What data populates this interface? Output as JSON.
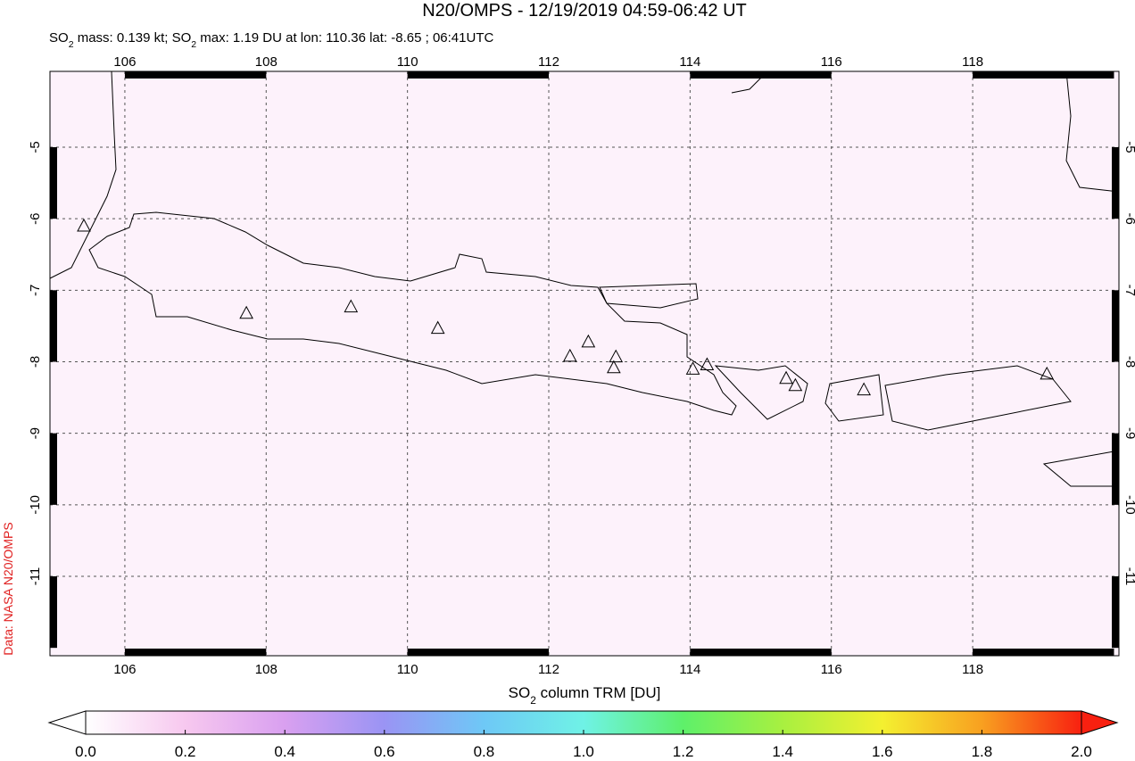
{
  "header": {
    "title": "N20/OMPS - 12/19/2019 04:59-06:42 UT",
    "subtitle": [
      "SO",
      "2",
      " mass: 0.139 kt; SO",
      "2",
      " max: 1.19 DU at lon: 110.36 lat: -8.65 ; 06:41UTC"
    ]
  },
  "map": {
    "xlim": [
      104.94,
      120.07
    ],
    "ylim": [
      -12.11,
      -3.94
    ],
    "xticks": [
      106,
      108,
      110,
      112,
      114,
      116,
      118
    ],
    "yticks": [
      -5,
      -6,
      -7,
      -8,
      -9,
      -10,
      -11
    ],
    "grid": true,
    "volcanoes": {
      "lon": [
        105.42,
        107.72,
        109.2,
        110.43,
        112.3,
        112.56,
        112.95,
        112.92,
        114.04,
        114.24,
        115.36,
        115.49,
        116.46,
        119.05
      ],
      "lat": [
        -6.11,
        -7.33,
        -7.24,
        -7.54,
        -7.93,
        -7.73,
        -7.94,
        -8.09,
        -8.11,
        -8.05,
        -8.24,
        -8.34,
        -8.4,
        -8.18
      ]
    },
    "credit": "Data: NASA N20/OMPS"
  },
  "colorbar": {
    "label": [
      "SO",
      "2",
      " column TRM [DU]"
    ],
    "lim": [
      0,
      2
    ],
    "ticks": [
      {
        "value": 0,
        "label": "0.0"
      },
      {
        "value": 0.2,
        "label": "0.2"
      },
      {
        "value": 0.4,
        "label": "0.4"
      },
      {
        "value": 0.6,
        "label": "0.6"
      },
      {
        "value": 0.8,
        "label": "0.8"
      },
      {
        "value": 1,
        "label": "1.0"
      },
      {
        "value": 1.2,
        "label": "1.2"
      },
      {
        "value": 1.4,
        "label": "1.4"
      },
      {
        "value": 1.6,
        "label": "1.6"
      },
      {
        "value": 1.8,
        "label": "1.8"
      },
      {
        "value": 2,
        "label": "2.0"
      }
    ],
    "colors": [
      "#ffffff",
      "#f7c8ef",
      "#d9a0f0",
      "#9a94f4",
      "#6ec8f6",
      "#6ff2e6",
      "#5ef06a",
      "#a8f040",
      "#f4f030",
      "#f8a020",
      "#f82010"
    ]
  }
}
